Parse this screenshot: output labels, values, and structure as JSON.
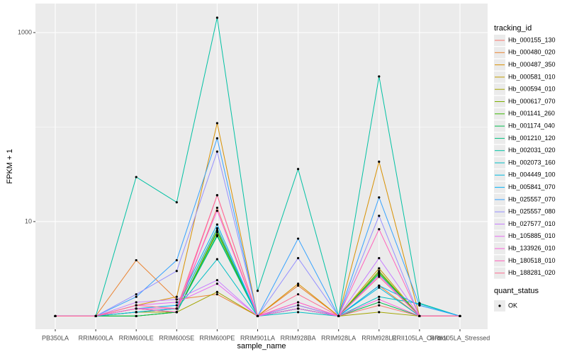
{
  "chart_data": {
    "type": "line",
    "x_label": "sample_name",
    "y_label": "FPKM + 1",
    "legend_title": "tracking_id",
    "legend_position": "right",
    "point_legend_title": "quant_status",
    "point_legend_labels": [
      "OK"
    ],
    "point_color": "#000000",
    "log_y": true,
    "grid": true,
    "categories": [
      "PB350LA",
      "RRIM600LA",
      "RRIM600LE",
      "RRIM600SE",
      "RRIM600PE",
      "RRIM901LA",
      "RRIM928BA",
      "RRIM928LA",
      "RRIM928LE",
      "RRII105LA_Control",
      "RRII105LA_Stressed"
    ],
    "ylim": [
      0.726,
      2028
    ],
    "yticks": [
      10,
      1000
    ],
    "minor_yticks": [
      100
    ],
    "series": [
      {
        "name": "Hb_000155_130",
        "color": "#F8766D",
        "values": [
          1,
          1,
          1.2,
          1.1,
          14,
          1,
          1.2,
          1,
          1.3,
          1,
          1
        ]
      },
      {
        "name": "Hb_000480_020",
        "color": "#EA8331",
        "values": [
          1,
          1,
          3.9,
          1.5,
          1.7,
          1,
          2.1,
          1,
          2.1,
          1,
          1
        ]
      },
      {
        "name": "Hb_000487_350",
        "color": "#D89000",
        "values": [
          1,
          1,
          1.3,
          1.6,
          110,
          1,
          2.2,
          1,
          43,
          1,
          1
        ]
      },
      {
        "name": "Hb_000581_010",
        "color": "#C09B00",
        "values": [
          1,
          1,
          1.1,
          1.2,
          8.5,
          1,
          1.3,
          1,
          3.2,
          1,
          1
        ]
      },
      {
        "name": "Hb_000594_010",
        "color": "#A3A500",
        "values": [
          1,
          1,
          1.1,
          1.1,
          1.8,
          1,
          1.2,
          1,
          1.1,
          1,
          1
        ]
      },
      {
        "name": "Hb_000617_070",
        "color": "#7CAE00",
        "values": [
          1,
          1,
          1,
          1.1,
          8,
          1,
          1.2,
          1,
          3,
          1,
          1
        ]
      },
      {
        "name": "Hb_001141_260",
        "color": "#39B600",
        "values": [
          1,
          1,
          1,
          1.1,
          7.7,
          1,
          1.3,
          1,
          2.9,
          1,
          1
        ]
      },
      {
        "name": "Hb_001174_040",
        "color": "#00BB4E",
        "values": [
          1,
          1,
          1,
          1.1,
          7.2,
          1,
          1.2,
          1,
          1.4,
          1,
          1
        ]
      },
      {
        "name": "Hb_001210_120",
        "color": "#00BF7D",
        "values": [
          1,
          1,
          1.2,
          1.1,
          7,
          1,
          1.2,
          1,
          2.8,
          1,
          1
        ]
      },
      {
        "name": "Hb_002031_020",
        "color": "#00C1A3",
        "values": [
          1,
          1,
          29.6,
          16,
          1436,
          1.85,
          36,
          1,
          343,
          1.37,
          1
        ]
      },
      {
        "name": "Hb_002073_160",
        "color": "#00BFC4",
        "values": [
          1,
          1,
          1.1,
          1.2,
          4,
          1,
          1.1,
          1,
          1.6,
          1.35,
          1
        ]
      },
      {
        "name": "Hb_004449_100",
        "color": "#00BAE0",
        "values": [
          1,
          1,
          1.1,
          1.2,
          8.4,
          1,
          1.2,
          1,
          2,
          1,
          1
        ]
      },
      {
        "name": "Hb_005841_070",
        "color": "#00B0F6",
        "values": [
          1,
          1,
          1.2,
          1.3,
          9.3,
          1,
          1.3,
          1,
          2.1,
          1.3,
          1
        ]
      },
      {
        "name": "Hb_025557_070",
        "color": "#35A2FF",
        "values": [
          1,
          1,
          1.6,
          3.9,
          76,
          1,
          6.6,
          1,
          18,
          1.3,
          1
        ]
      },
      {
        "name": "Hb_025557_080",
        "color": "#9590FF",
        "values": [
          1,
          1,
          1.7,
          3,
          55,
          1,
          4.1,
          1,
          11.5,
          1,
          1
        ]
      },
      {
        "name": "Hb_027577_010",
        "color": "#C77CFF",
        "values": [
          1,
          1,
          1.4,
          1.5,
          2.4,
          1,
          1.3,
          1,
          4.1,
          1,
          1
        ]
      },
      {
        "name": "Hb_105885_010",
        "color": "#E76BF3",
        "values": [
          1,
          1,
          1.3,
          1.4,
          2.2,
          1,
          1.4,
          1,
          2.7,
          1,
          1
        ]
      },
      {
        "name": "Hb_133926_010",
        "color": "#FA62DB",
        "values": [
          1,
          1,
          1.2,
          1.2,
          13,
          1,
          1.2,
          1,
          1.5,
          1,
          1
        ]
      },
      {
        "name": "Hb_180518_010",
        "color": "#FF62BC",
        "values": [
          1,
          1,
          1.2,
          1.1,
          19,
          1,
          1.4,
          1,
          8.3,
          1,
          1
        ]
      },
      {
        "name": "Hb_188281_020",
        "color": "#FF6C91",
        "values": [
          1,
          1,
          1.3,
          1.2,
          19,
          1,
          1.7,
          1,
          2.6,
          1,
          1
        ]
      }
    ]
  }
}
